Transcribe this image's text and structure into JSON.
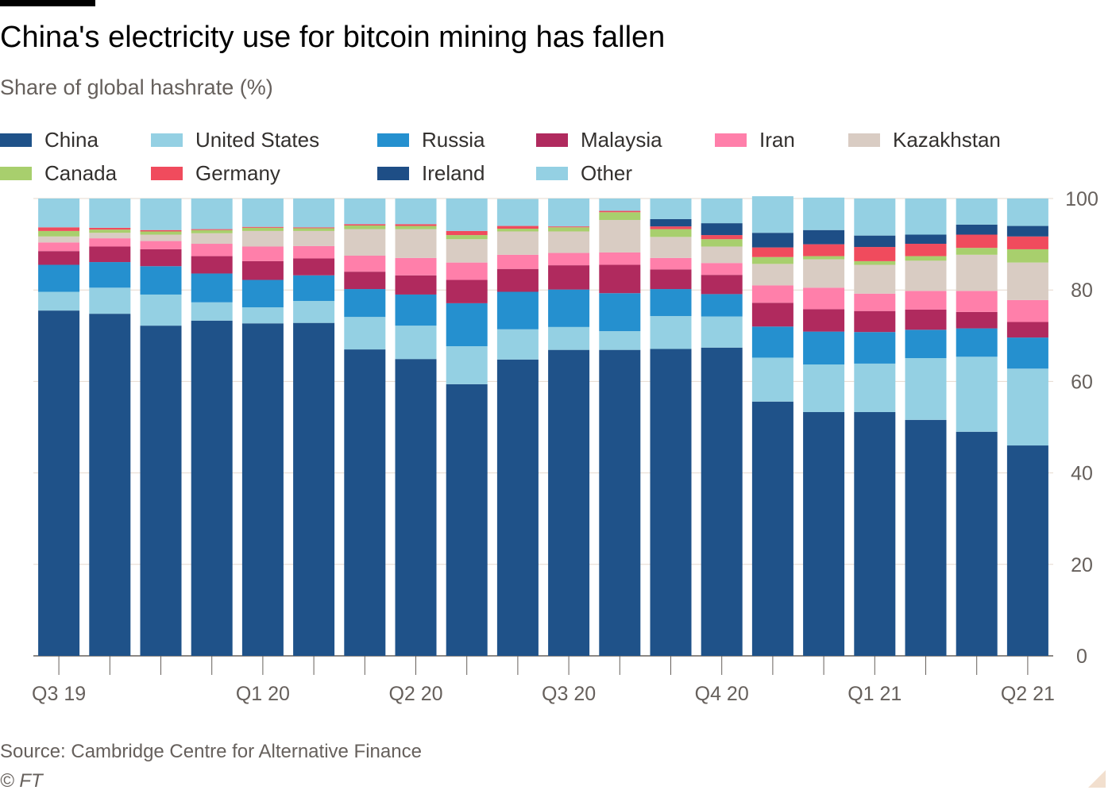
{
  "title": "China's electricity use for bitcoin mining has fallen",
  "subtitle": "Share of global hashrate (%)",
  "source": "Source: Cambridge Centre for Alternative Finance",
  "copyright": "© FT",
  "chart_data": {
    "type": "bar",
    "stacked": true,
    "categories": [
      "Sep 2019",
      "Oct 2019",
      "Nov 2019",
      "Dec 2019",
      "Jan 2020",
      "Feb 2020",
      "Mar 2020",
      "Apr 2020",
      "May 2020",
      "Jun 2020",
      "Jul 2020",
      "Aug 2020",
      "Sep 2020",
      "Oct 2020",
      "Nov 2020",
      "Dec 2020",
      "Jan 2021",
      "Feb 2021",
      "Mar 2021",
      "Apr 2021"
    ],
    "x_tick_labels": [
      {
        "label": "Q3 19",
        "index": 0
      },
      {
        "label": "Q1 20",
        "index": 4
      },
      {
        "label": "Q2 20",
        "index": 7
      },
      {
        "label": "Q3 20",
        "index": 10
      },
      {
        "label": "Q4 20",
        "index": 13
      },
      {
        "label": "Q1 21",
        "index": 16
      },
      {
        "label": "Q2 21",
        "index": 19
      }
    ],
    "ylim": [
      0,
      100
    ],
    "yticks": [
      0,
      20,
      40,
      60,
      80,
      100
    ],
    "grid": true,
    "legend_position": "top",
    "series": [
      {
        "name": "China",
        "color": "#1f5289",
        "values": [
          75.5,
          74.8,
          72.2,
          73.3,
          72.7,
          72.8,
          67.0,
          64.9,
          59.4,
          64.8,
          66.9,
          66.9,
          67.1,
          67.4,
          55.6,
          53.3,
          53.3,
          51.6,
          49.0,
          46.0
        ]
      },
      {
        "name": "United States",
        "color": "#94d0e3",
        "values": [
          4.1,
          5.7,
          6.8,
          4.0,
          3.5,
          4.8,
          7.1,
          7.3,
          8.3,
          6.6,
          5.0,
          4.1,
          7.2,
          6.8,
          9.6,
          10.4,
          10.6,
          13.5,
          16.4,
          16.8
        ]
      },
      {
        "name": "Russia",
        "color": "#2590cf",
        "values": [
          5.9,
          5.6,
          6.2,
          6.3,
          6.0,
          5.6,
          6.1,
          6.8,
          9.4,
          8.2,
          8.2,
          8.3,
          5.9,
          4.9,
          6.8,
          7.2,
          6.9,
          6.2,
          6.2,
          6.8
        ]
      },
      {
        "name": "Malaysia",
        "color": "#b02a5e",
        "values": [
          3.0,
          3.4,
          3.7,
          3.8,
          4.1,
          3.7,
          3.8,
          4.2,
          5.1,
          5.0,
          5.3,
          6.2,
          4.3,
          4.2,
          5.2,
          4.9,
          4.6,
          4.4,
          3.6,
          3.4
        ]
      },
      {
        "name": "Iran",
        "color": "#ff7faa",
        "values": [
          1.9,
          1.8,
          1.8,
          2.7,
          3.2,
          2.7,
          3.5,
          3.8,
          3.8,
          3.1,
          2.7,
          2.7,
          2.5,
          2.6,
          3.8,
          4.7,
          3.8,
          4.1,
          4.6,
          4.8
        ]
      },
      {
        "name": "Kazakhstan",
        "color": "#d9ccc3",
        "values": [
          1.3,
          1.2,
          1.4,
          2.3,
          3.4,
          3.3,
          5.8,
          6.3,
          5.1,
          5.1,
          4.7,
          7.1,
          4.6,
          3.6,
          4.7,
          6.2,
          6.3,
          6.6,
          7.9,
          8.2
        ]
      },
      {
        "name": "Canada",
        "color": "#a8cf6d",
        "values": [
          1.2,
          0.7,
          0.7,
          0.7,
          0.7,
          0.6,
          0.8,
          0.7,
          0.9,
          0.6,
          0.9,
          1.7,
          1.7,
          1.6,
          1.5,
          0.7,
          0.8,
          1.0,
          1.5,
          2.9
        ]
      },
      {
        "name": "Germany",
        "color": "#f04b5d",
        "values": [
          0.8,
          0.4,
          0.3,
          0.2,
          0.2,
          0.2,
          0.3,
          0.4,
          0.9,
          0.6,
          0.2,
          0.3,
          0.6,
          0.9,
          2.1,
          2.6,
          3.1,
          2.7,
          2.9,
          2.8
        ]
      },
      {
        "name": "Ireland",
        "color": "#1e4e86",
        "values": [
          0.0,
          0.0,
          0.0,
          0.0,
          0.0,
          0.0,
          0.0,
          0.0,
          0.0,
          0.0,
          0.0,
          0.0,
          1.6,
          2.6,
          3.2,
          3.1,
          2.5,
          2.0,
          2.2,
          2.3
        ]
      },
      {
        "name": "Other",
        "color": "#94d0e3",
        "values": [
          6.3,
          6.4,
          6.9,
          6.7,
          6.2,
          6.3,
          5.6,
          5.6,
          7.1,
          5.9,
          6.1,
          2.7,
          4.5,
          5.4,
          8.0,
          7.1,
          8.1,
          7.9,
          5.7,
          6.0
        ]
      }
    ]
  }
}
